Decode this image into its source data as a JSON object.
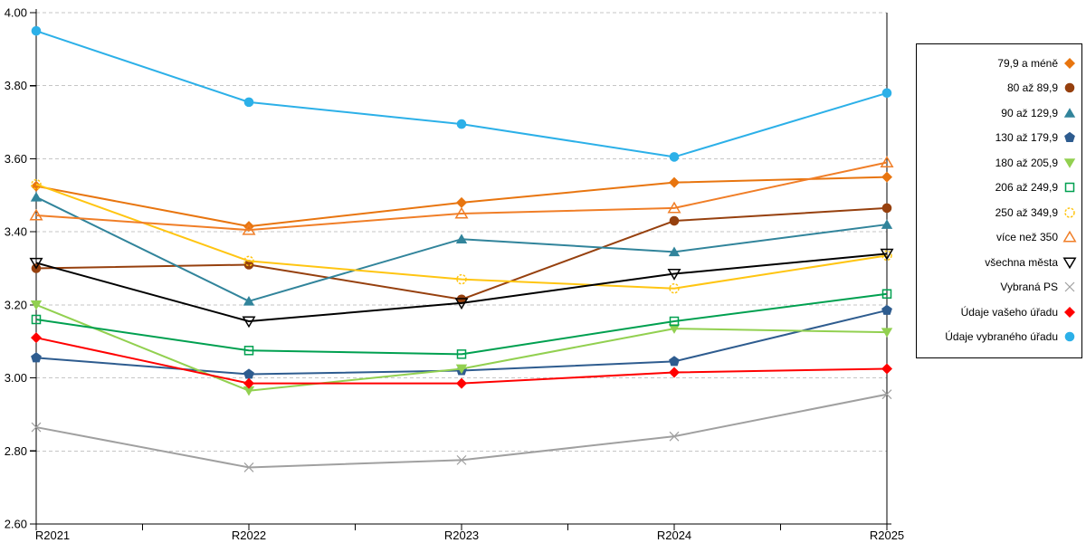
{
  "chart_data": {
    "type": "line",
    "title": "",
    "xlabel": "",
    "ylabel": "",
    "categories": [
      "R2021",
      "R2022",
      "R2023",
      "R2024",
      "R2025"
    ],
    "ylim": [
      2.6,
      4.0
    ],
    "ytick_step": 0.2,
    "ytick_labels": [
      "2.60",
      "2.80",
      "3.00",
      "3.20",
      "3.40",
      "3.60",
      "3.80",
      "4.00"
    ],
    "grid": "horizontal-dashed",
    "gridline_color": "#C6C6C6",
    "axis_color": "#000000",
    "legend_position": "right-outside",
    "series": [
      {
        "name": "79,9 a méně",
        "marker": "diamond-filled",
        "color": "#E8750F",
        "values": [
          3.525,
          3.415,
          3.48,
          3.535,
          3.55
        ]
      },
      {
        "name": "80 až 89,9",
        "marker": "circle-filled",
        "color": "#96400E",
        "values": [
          3.3,
          3.31,
          3.215,
          3.43,
          3.465
        ]
      },
      {
        "name": "90 až 129,9",
        "marker": "triangle-up-filled",
        "color": "#31849B",
        "values": [
          3.495,
          3.21,
          3.38,
          3.345,
          3.42
        ]
      },
      {
        "name": "130 až 179,9",
        "marker": "pentagon-filled",
        "color": "#2E5C8F",
        "values": [
          3.055,
          3.01,
          3.02,
          3.045,
          3.185
        ]
      },
      {
        "name": "180 až 205,9",
        "marker": "triangle-down-filled",
        "color": "#92D050",
        "values": [
          3.2,
          2.965,
          3.025,
          3.135,
          3.125
        ]
      },
      {
        "name": "206 až 249,9",
        "marker": "square-open",
        "color": "#00A050",
        "values": [
          3.16,
          3.075,
          3.065,
          3.155,
          3.23
        ]
      },
      {
        "name": "250 až 349,9",
        "marker": "circle-open",
        "color": "#FFC512",
        "values": [
          3.53,
          3.32,
          3.27,
          3.245,
          3.335
        ]
      },
      {
        "name": "více než 350",
        "marker": "triangle-up-open",
        "color": "#F07E27",
        "values": [
          3.445,
          3.405,
          3.45,
          3.465,
          3.59
        ]
      },
      {
        "name": "všechna města",
        "marker": "triangle-down-open",
        "color": "#000000",
        "values": [
          3.315,
          3.155,
          3.205,
          3.285,
          3.34
        ]
      },
      {
        "name": "Vybraná PS",
        "marker": "x",
        "color": "#A0A0A0",
        "values": [
          2.865,
          2.755,
          2.775,
          2.84,
          2.955
        ]
      },
      {
        "name": "Údaje vašeho úřadu",
        "marker": "diamond-filled",
        "color": "#FF0000",
        "values": [
          3.11,
          2.985,
          2.985,
          3.015,
          3.025
        ]
      },
      {
        "name": "Údaje vybraného úřadu",
        "marker": "circle-filled",
        "color": "#2CB0E8",
        "values": [
          3.95,
          3.755,
          3.695,
          3.605,
          3.78
        ]
      }
    ]
  }
}
